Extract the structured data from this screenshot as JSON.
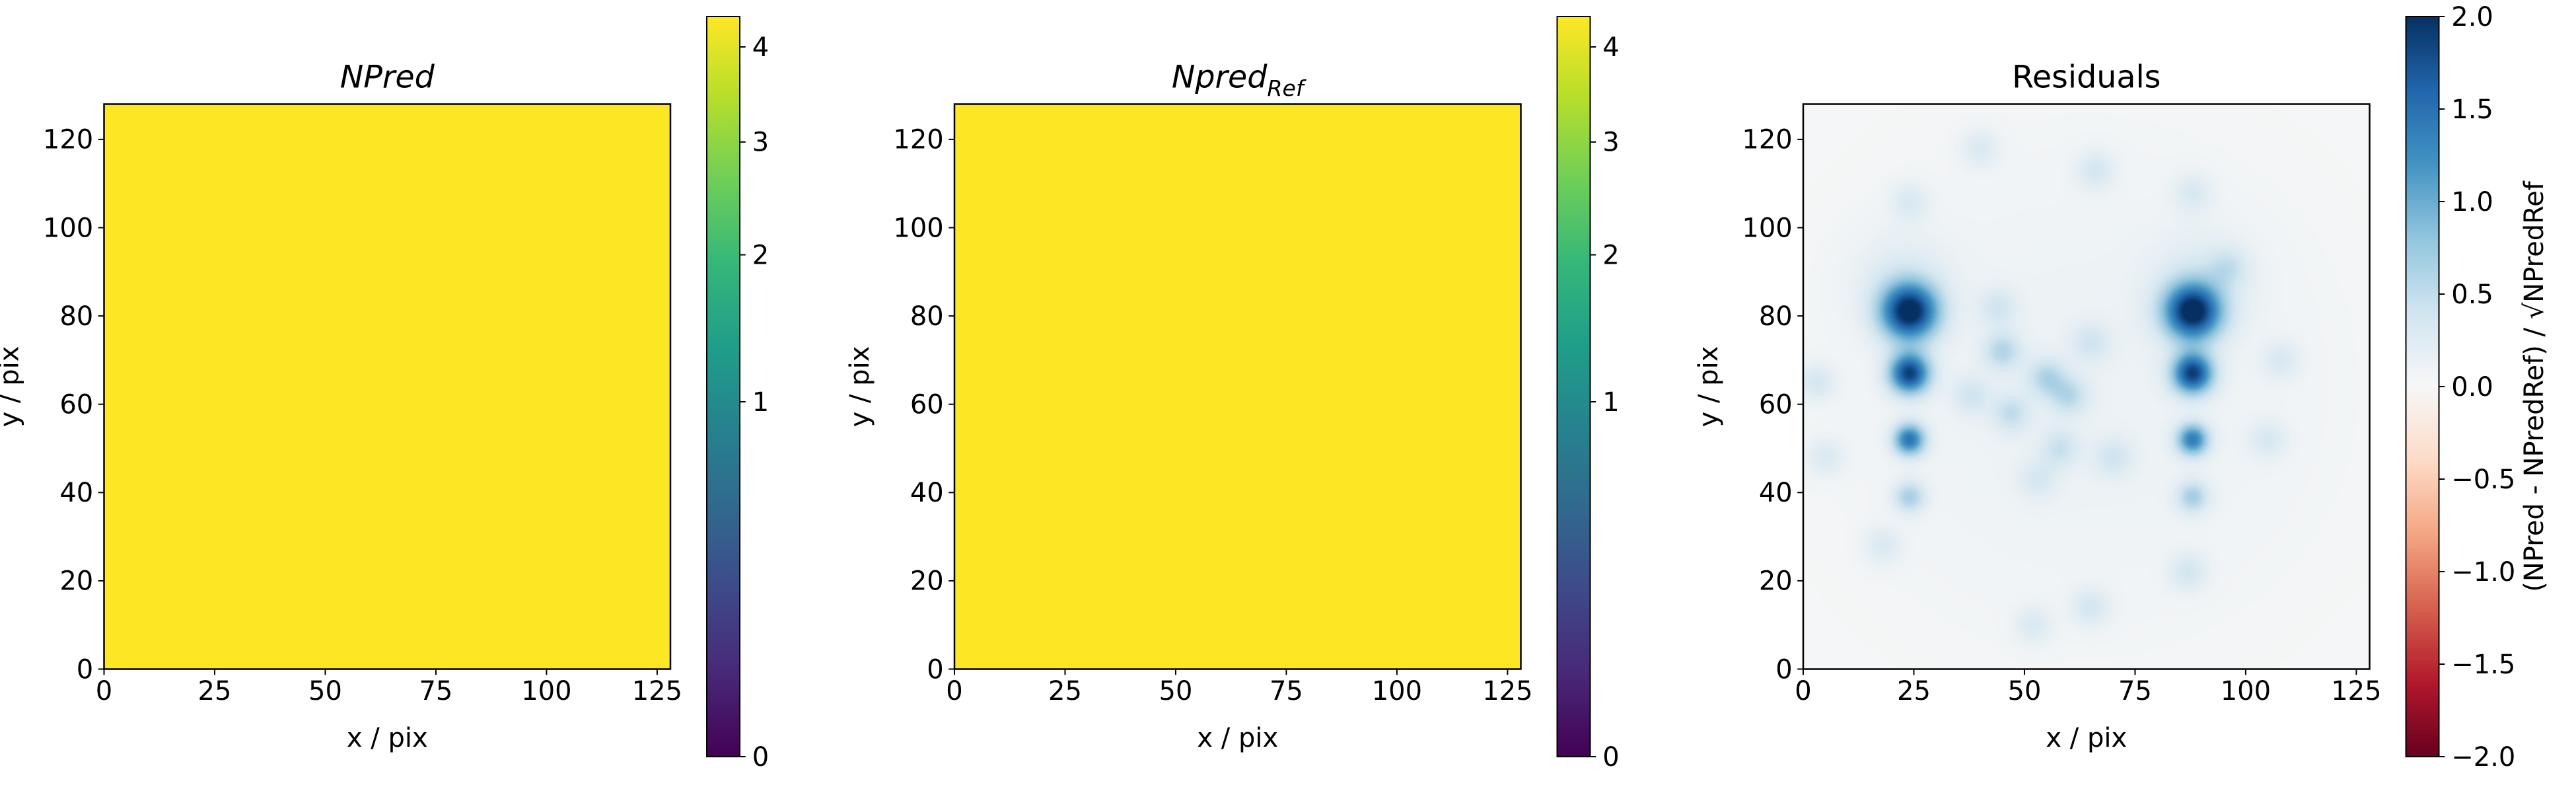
{
  "chart_data": [
    {
      "type": "heatmap",
      "title": "NPred",
      "xlabel": "x / pix",
      "ylabel": "y / pix",
      "xlim": [
        0,
        128
      ],
      "ylim": [
        0,
        128
      ],
      "xticks": [
        0,
        25,
        50,
        75,
        100,
        125
      ],
      "yticks": [
        0,
        20,
        40,
        60,
        80,
        100,
        120
      ],
      "fill_value": 4.35,
      "fill_color": "#fde725",
      "colormap": "viridis",
      "colorbar": {
        "scale": "sqrt",
        "range": [
          0,
          4.35
        ],
        "ticks": [
          0,
          1,
          2,
          3,
          4
        ]
      }
    },
    {
      "type": "heatmap",
      "title": "Npred",
      "title_subscript": "Ref",
      "xlabel": "x / pix",
      "ylabel": "y / pix",
      "xlim": [
        0,
        128
      ],
      "ylim": [
        0,
        128
      ],
      "xticks": [
        0,
        25,
        50,
        75,
        100,
        125
      ],
      "yticks": [
        0,
        20,
        40,
        60,
        80,
        100,
        120
      ],
      "fill_value": 4.35,
      "fill_color": "#fde725",
      "colormap": "viridis",
      "colorbar": {
        "scale": "sqrt",
        "range": [
          0,
          4.35
        ],
        "ticks": [
          0,
          1,
          2,
          3,
          4
        ]
      }
    },
    {
      "type": "heatmap",
      "title": "Residuals",
      "xlabel": "x / pix",
      "ylabel": "y / pix",
      "xlim": [
        0,
        128
      ],
      "ylim": [
        0,
        128
      ],
      "xticks": [
        0,
        25,
        50,
        75,
        100,
        125
      ],
      "yticks": [
        0,
        20,
        40,
        60,
        80,
        100,
        120
      ],
      "colormap": "RdBu",
      "colorbar": {
        "scale": "linear",
        "range": [
          -2.0,
          2.0
        ],
        "ticks": [
          2.0,
          1.5,
          1.0,
          0.5,
          0.0,
          -0.5,
          -1.0,
          -1.5,
          -2.0
        ],
        "tick_labels": [
          "2.0",
          "1.5",
          "1.0",
          "0.5",
          "0.0",
          "−0.5",
          "−1.0",
          "−1.5",
          "−2.0"
        ],
        "label": "(NPred - NPredRef) / √NPredRef"
      },
      "sources": [
        {
          "x": 24,
          "y": 81,
          "peak": 2.0,
          "sigma": 4.5
        },
        {
          "x": 88,
          "y": 81,
          "peak": 2.0,
          "sigma": 4.5
        },
        {
          "x": 24,
          "y": 67,
          "peak": 1.8,
          "sigma": 3.2
        },
        {
          "x": 88,
          "y": 67,
          "peak": 1.8,
          "sigma": 3.2
        },
        {
          "x": 24,
          "y": 52,
          "peak": 1.4,
          "sigma": 2.5
        },
        {
          "x": 88,
          "y": 52,
          "peak": 1.3,
          "sigma": 2.5
        },
        {
          "x": 24,
          "y": 39,
          "peak": 0.6,
          "sigma": 2.5
        },
        {
          "x": 88,
          "y": 39,
          "peak": 0.6,
          "sigma": 2.5
        },
        {
          "x": 45,
          "y": 72,
          "peak": 0.5,
          "sigma": 3
        },
        {
          "x": 55,
          "y": 66,
          "peak": 0.5,
          "sigma": 3
        },
        {
          "x": 60,
          "y": 62,
          "peak": 0.45,
          "sigma": 3
        },
        {
          "x": 47,
          "y": 58,
          "peak": 0.4,
          "sigma": 3
        },
        {
          "x": 58,
          "y": 50,
          "peak": 0.35,
          "sigma": 3
        },
        {
          "x": 44,
          "y": 82,
          "peak": 0.3,
          "sigma": 3
        },
        {
          "x": 65,
          "y": 74,
          "peak": 0.3,
          "sigma": 3
        },
        {
          "x": 70,
          "y": 48,
          "peak": 0.3,
          "sigma": 3
        },
        {
          "x": 38,
          "y": 62,
          "peak": 0.3,
          "sigma": 3
        },
        {
          "x": 53,
          "y": 43,
          "peak": 0.25,
          "sigma": 3
        },
        {
          "x": 66,
          "y": 113,
          "peak": 0.3,
          "sigma": 3
        },
        {
          "x": 40,
          "y": 118,
          "peak": 0.25,
          "sigma": 3
        },
        {
          "x": 18,
          "y": 28,
          "peak": 0.25,
          "sigma": 3
        },
        {
          "x": 52,
          "y": 10,
          "peak": 0.25,
          "sigma": 3
        },
        {
          "x": 65,
          "y": 14,
          "peak": 0.3,
          "sigma": 3
        },
        {
          "x": 108,
          "y": 70,
          "peak": 0.25,
          "sigma": 3
        },
        {
          "x": 3,
          "y": 65,
          "peak": 0.3,
          "sigma": 3
        },
        {
          "x": 5,
          "y": 48,
          "peak": 0.25,
          "sigma": 3
        },
        {
          "x": 24,
          "y": 106,
          "peak": 0.25,
          "sigma": 3
        },
        {
          "x": 88,
          "y": 108,
          "peak": 0.25,
          "sigma": 3
        },
        {
          "x": 96,
          "y": 91,
          "peak": 0.3,
          "sigma": 3
        },
        {
          "x": 87,
          "y": 22,
          "peak": 0.3,
          "sigma": 3
        },
        {
          "x": 105,
          "y": 52,
          "peak": 0.25,
          "sigma": 3
        },
        {
          "x": 90,
          "y": 88,
          "peak": 0.2,
          "sigma": 8
        },
        {
          "x": 22,
          "y": 88,
          "peak": 0.2,
          "sigma": 8
        },
        {
          "x": 64,
          "y": 64,
          "peak": 0.12,
          "sigma": 45
        }
      ]
    }
  ]
}
